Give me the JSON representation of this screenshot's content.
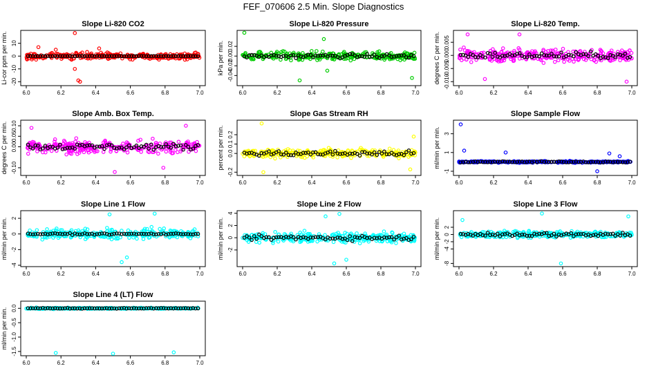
{
  "page": {
    "title": "FEF_070606  2.5 Min. Slope Diagnostics"
  },
  "colors": {
    "black": "#000000",
    "red": "#ff0000",
    "green": "#00cc00",
    "magenta": "#ff00ff",
    "yellow": "#ffff00",
    "blue": "#0000ff",
    "cyan": "#00ffff"
  },
  "chart_data": [
    {
      "type": "scatter",
      "title": "Slope Li-820 CO2",
      "ylabel": "Li-cor ppm per min.",
      "color": "#ff0000",
      "xlim": [
        6.0,
        7.0
      ],
      "ylim": [
        -22,
        19
      ],
      "xticks": [
        6.0,
        6.2,
        6.4,
        6.6,
        6.8,
        7.0
      ],
      "yticks": [
        -20,
        -10,
        0,
        10
      ],
      "ytick_labels": [
        "-20",
        "-10",
        "0",
        "10"
      ],
      "spread": 3.5,
      "black_spread": 0.2,
      "outliers": [
        [
          6.28,
          18
        ],
        [
          6.3,
          -19
        ],
        [
          6.31,
          -20
        ],
        [
          6.28,
          -10
        ],
        [
          6.07,
          7
        ],
        [
          6.17,
          5
        ],
        [
          6.42,
          6
        ]
      ]
    },
    {
      "type": "scatter",
      "title": "Slope Li-820 Pressure",
      "ylabel": "kPa per min.",
      "color": "#00cc00",
      "xlim": [
        6.0,
        7.0
      ],
      "ylim": [
        -0.058,
        0.05
      ],
      "xticks": [
        6.0,
        6.2,
        6.4,
        6.6,
        6.8,
        7.0
      ],
      "yticks": [
        -0.04,
        -0.02,
        0.0,
        0.02
      ],
      "ytick_labels": [
        "-0.04",
        "-0.02",
        "0.00",
        "0.02"
      ],
      "spread": 0.012,
      "black_spread": 0.007,
      "outliers": [
        [
          6.01,
          0.048
        ],
        [
          6.33,
          -0.05
        ],
        [
          6.49,
          -0.03
        ],
        [
          6.98,
          -0.045
        ],
        [
          6.47,
          0.035
        ]
      ]
    },
    {
      "type": "scatter",
      "title": "Slope Li-820 Temp.",
      "ylabel": "degrees C per min.",
      "color": "#ff00ff",
      "xlim": [
        6.0,
        7.0
      ],
      "ylim": [
        -0.011,
        0.009
      ],
      "xticks": [
        6.0,
        6.2,
        6.4,
        6.6,
        6.8,
        7.0
      ],
      "yticks": [
        -0.01,
        -0.005,
        0.0,
        0.005
      ],
      "ytick_labels": [
        "-0.010",
        "-0.005",
        "0.000",
        "0.005"
      ],
      "spread": 0.0035,
      "black_spread": 0.002,
      "outliers": [
        [
          6.05,
          0.008
        ],
        [
          6.35,
          0.008
        ],
        [
          6.97,
          -0.01
        ],
        [
          6.15,
          -0.009
        ]
      ]
    },
    {
      "type": "scatter",
      "title": "Slope Amb. Box Temp.",
      "ylabel": "degrees C per min.",
      "color": "#ff00ff",
      "xlim": [
        6.0,
        7.0
      ],
      "ylim": [
        -0.13,
        0.12
      ],
      "xticks": [
        6.0,
        6.2,
        6.4,
        6.6,
        6.8,
        7.0
      ],
      "yticks": [
        -0.1,
        0.0,
        0.05,
        0.1
      ],
      "ytick_labels": [
        "-0.10",
        "0.00",
        "0.05",
        "0.10"
      ],
      "spread": 0.04,
      "black_spread": 0.025,
      "outliers": [
        [
          6.92,
          0.1
        ],
        [
          6.03,
          0.09
        ],
        [
          6.51,
          -0.12
        ],
        [
          6.79,
          -0.1
        ]
      ]
    },
    {
      "type": "scatter",
      "title": "Slope Gas Stream RH",
      "ylabel": "percent per min.",
      "color": "#ffff00",
      "xlim": [
        6.0,
        7.0
      ],
      "ylim": [
        -0.22,
        0.34
      ],
      "xticks": [
        6.0,
        6.2,
        6.4,
        6.6,
        6.8,
        7.0
      ],
      "yticks": [
        -0.2,
        0.0,
        0.1,
        0.2
      ],
      "ytick_labels": [
        "-0.2",
        "0.0",
        "0.1",
        "0.2"
      ],
      "spread": 0.06,
      "black_spread": 0.05,
      "outliers": [
        [
          6.11,
          0.32
        ],
        [
          6.12,
          -0.2
        ],
        [
          6.97,
          -0.17
        ],
        [
          6.99,
          0.18
        ]
      ]
    },
    {
      "type": "scatter",
      "title": "Slope Sample Flow",
      "ylabel": "ml/min per min.",
      "color": "#0000ff",
      "xlim": [
        6.0,
        7.0
      ],
      "ylim": [
        -1.3,
        4.3
      ],
      "xticks": [
        6.0,
        6.2,
        6.4,
        6.6,
        6.8,
        7.0
      ],
      "yticks": [
        -1,
        1,
        3
      ],
      "ytick_labels": [
        "-1",
        "1",
        "3"
      ],
      "spread": 0.12,
      "black_spread": 0.1,
      "outliers": [
        [
          6.01,
          4.0
        ],
        [
          6.27,
          1.0
        ],
        [
          6.03,
          1.2
        ],
        [
          6.8,
          -1.0
        ],
        [
          6.87,
          0.9
        ],
        [
          6.93,
          0.6
        ]
      ]
    },
    {
      "type": "scatter",
      "title": "Slope Line 1 Flow",
      "ylabel": "ml/min per min.",
      "color": "#00ffff",
      "xlim": [
        6.0,
        7.0
      ],
      "ylim": [
        -4,
        2.8
      ],
      "xticks": [
        6.0,
        6.2,
        6.4,
        6.6,
        6.8,
        7.0
      ],
      "yticks": [
        -4,
        -2,
        0,
        2
      ],
      "ytick_labels": [
        "-4",
        "-2",
        "0",
        "2"
      ],
      "spread": 0.9,
      "black_spread": 0.15,
      "outliers": [
        [
          6.55,
          -3.6
        ],
        [
          6.58,
          -3.0
        ],
        [
          6.74,
          2.6
        ],
        [
          6.48,
          2.5
        ]
      ]
    },
    {
      "type": "scatter",
      "title": "Slope Line 2 Flow",
      "ylabel": "ml/min per min.",
      "color": "#00ffff",
      "xlim": [
        6.0,
        7.0
      ],
      "ylim": [
        -4.5,
        4.2
      ],
      "xticks": [
        6.0,
        6.2,
        6.4,
        6.6,
        6.8,
        7.0
      ],
      "yticks": [
        -2,
        0,
        2,
        4
      ],
      "ytick_labels": [
        "-2",
        "0",
        "2",
        "4"
      ],
      "spread": 1.1,
      "black_spread": 0.7,
      "outliers": [
        [
          6.53,
          -4.2
        ],
        [
          6.56,
          3.9
        ],
        [
          6.48,
          3.5
        ],
        [
          6.6,
          -3.6
        ]
      ]
    },
    {
      "type": "scatter",
      "title": "Slope Line 3 Flow",
      "ylabel": "ml/min per min.",
      "color": "#00ffff",
      "xlim": [
        6.0,
        7.0
      ],
      "ylim": [
        -8.5,
        6.2
      ],
      "xticks": [
        6.0,
        6.2,
        6.4,
        6.6,
        6.8,
        7.0
      ],
      "yticks": [
        -8,
        -4,
        -2,
        0,
        2
      ],
      "ytick_labels": [
        "-8",
        "-4",
        "-2",
        "0",
        "2"
      ],
      "spread": 1.2,
      "black_spread": 1.0,
      "outliers": [
        [
          6.59,
          -8.0
        ],
        [
          6.48,
          5.8
        ],
        [
          6.02,
          4.0
        ],
        [
          6.98,
          5.0
        ]
      ]
    },
    {
      "type": "scatter",
      "title": "Slope Line 4 (LT) Flow",
      "ylabel": "ml/min per min.",
      "color": "#00ffff",
      "xlim": [
        6.0,
        7.0
      ],
      "ylim": [
        -1.6,
        0.2
      ],
      "xticks": [
        6.0,
        6.2,
        6.4,
        6.6,
        6.8,
        7.0
      ],
      "yticks": [
        -1.5,
        -1.0,
        -0.5,
        0.0
      ],
      "ytick_labels": [
        "-1.5",
        "-1.0",
        "-0.5",
        "0.0"
      ],
      "spread": 0.03,
      "black_spread": 0.02,
      "center": 0.0,
      "outliers": [
        [
          6.17,
          -1.55
        ],
        [
          6.5,
          -1.58
        ],
        [
          6.85,
          -1.53
        ]
      ]
    }
  ]
}
